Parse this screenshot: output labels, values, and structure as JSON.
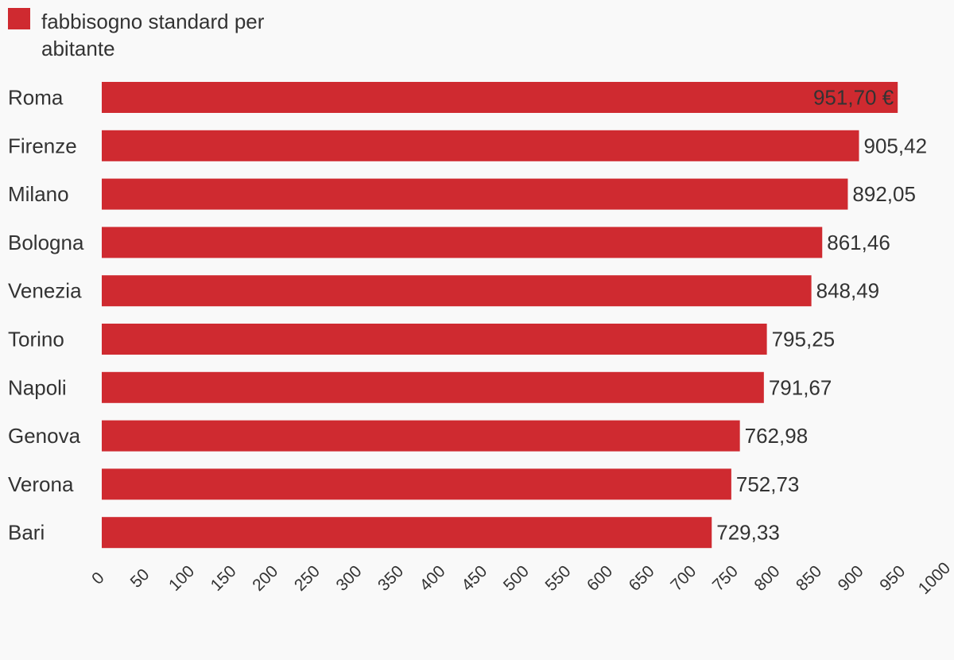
{
  "legend": {
    "label": "fabbisogno standard per abitante",
    "color": "#cf2a30"
  },
  "chart_data": {
    "type": "bar",
    "orientation": "horizontal",
    "categories": [
      "Roma",
      "Firenze",
      "Milano",
      "Bologna",
      "Venezia",
      "Torino",
      "Napoli",
      "Genova",
      "Verona",
      "Bari"
    ],
    "values": [
      951.7,
      905.42,
      892.05,
      861.46,
      848.49,
      795.25,
      791.67,
      762.98,
      752.73,
      729.33
    ],
    "value_labels": [
      "951,70 €",
      "905,42",
      "892,05",
      "861,46",
      "848,49",
      "795,25",
      "791,67",
      "762,98",
      "752,73",
      "729,33"
    ],
    "series": [
      {
        "name": "fabbisogno standard per abitante",
        "values": [
          951.7,
          905.42,
          892.05,
          861.46,
          848.49,
          795.25,
          791.67,
          762.98,
          752.73,
          729.33
        ]
      }
    ],
    "xticks": [
      "0",
      "50",
      "100",
      "150",
      "200",
      "250",
      "300",
      "350",
      "400",
      "450",
      "500",
      "550",
      "600",
      "650",
      "700",
      "750",
      "800",
      "850",
      "900",
      "950",
      "1000"
    ],
    "xlim": [
      0,
      1000
    ],
    "grid": false,
    "legend_position": "top-left",
    "bar_color": "#cf2a30"
  }
}
